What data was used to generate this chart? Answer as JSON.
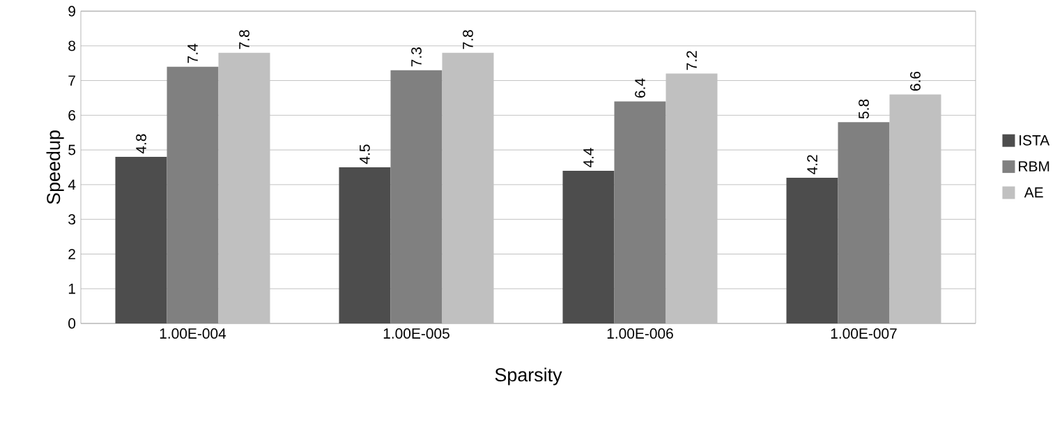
{
  "chart_data": {
    "type": "bar",
    "xlabel": "Sparsity",
    "ylabel": "Speedup",
    "categories": [
      "1.00E-004",
      "1.00E-005",
      "1.00E-006",
      "1.00E-007"
    ],
    "series": [
      {
        "name": "ISTA",
        "color": "#4d4d4d",
        "values": [
          4.8,
          4.5,
          4.4,
          4.2
        ]
      },
      {
        "name": "RBM",
        "color": "#808080",
        "values": [
          7.4,
          7.3,
          6.4,
          5.8
        ]
      },
      {
        "name": "AE",
        "color": "#c0c0c0",
        "values": [
          7.8,
          7.8,
          7.2,
          6.6
        ]
      }
    ],
    "ylim": [
      0,
      9
    ],
    "yticks": [
      0,
      1,
      2,
      3,
      4,
      5,
      6,
      7,
      8,
      9
    ],
    "grid": "y",
    "legend": "right",
    "data_labels": true
  }
}
